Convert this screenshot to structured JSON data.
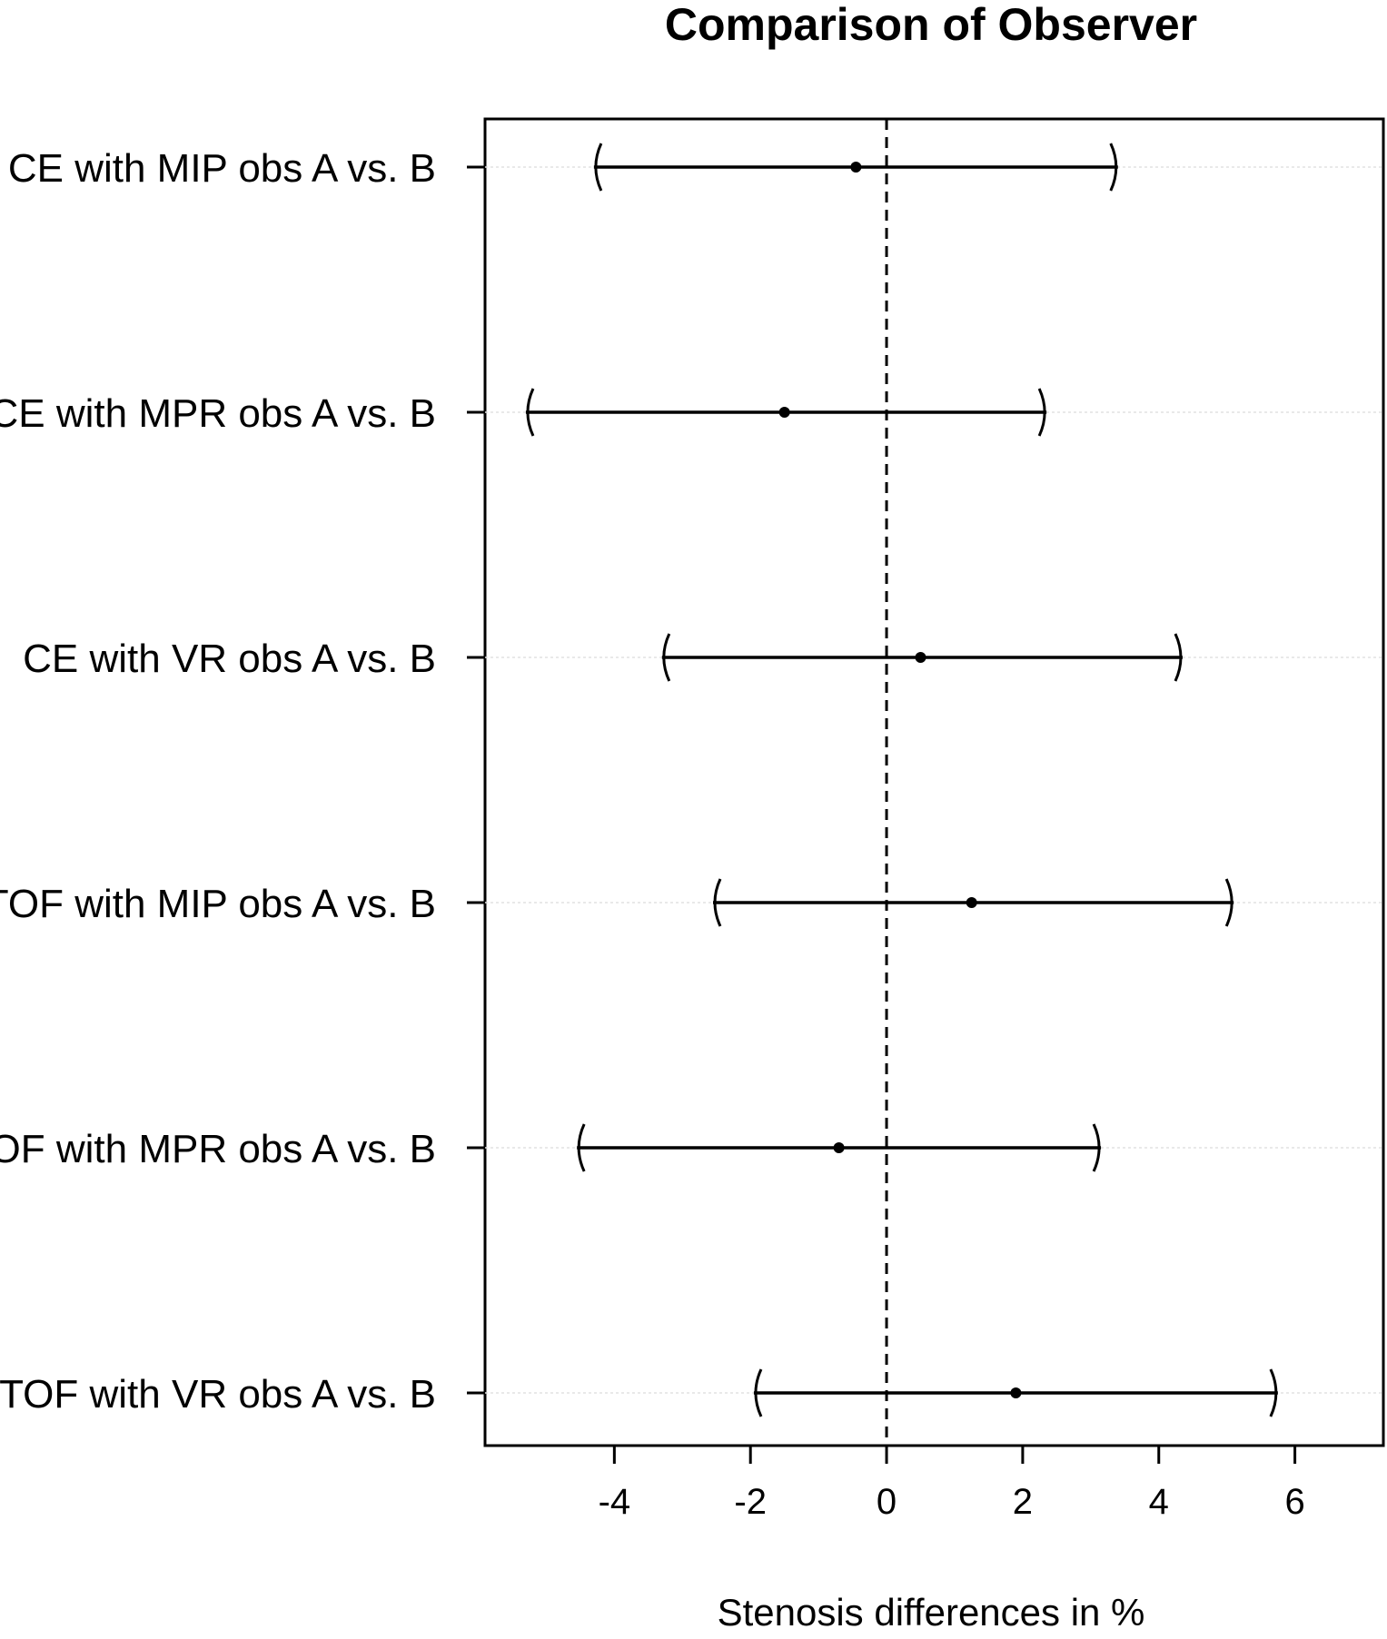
{
  "chart_data": {
    "type": "forest",
    "title": "Comparison of Observer",
    "xlabel": "Stenosis differences in %",
    "ylabel": "",
    "xlim": [
      -5.9,
      7.3
    ],
    "xticks": [
      -4,
      -2,
      0,
      2,
      4,
      6
    ],
    "xtick_labels": [
      "-4",
      "-2",
      "0",
      "2",
      "4",
      "6"
    ],
    "reference_line": {
      "x": 0,
      "style": "dashed"
    },
    "grid": "faint horizontal lines at each row",
    "rows": [
      {
        "label": "CE with MIP obs A vs. B",
        "estimate": -0.45,
        "lower": -4.3,
        "upper": 3.4
      },
      {
        "label": "CE with MPR obs A vs. B",
        "estimate": -1.5,
        "lower": -5.3,
        "upper": 2.35
      },
      {
        "label": "CE with VR obs A vs. B",
        "estimate": 0.5,
        "lower": -3.3,
        "upper": 4.35
      },
      {
        "label": "TOF with MIP obs A vs. B",
        "estimate": 1.25,
        "lower": -2.55,
        "upper": 5.1
      },
      {
        "label": "TOF with MPR obs A vs. B",
        "estimate": -0.7,
        "lower": -4.55,
        "upper": 3.15
      },
      {
        "label": "TOF with VR obs A vs. B",
        "estimate": 1.9,
        "lower": -1.95,
        "upper": 5.75
      }
    ]
  }
}
